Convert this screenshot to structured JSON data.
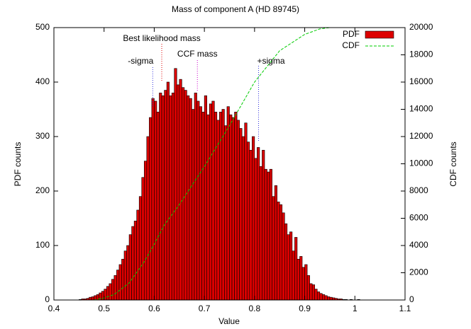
{
  "chart_data": {
    "type": "histogram",
    "title": "Mass of component A (HD 89745)",
    "x_label": "Value",
    "y_label": "PDF counts",
    "y2_label": "CDF counts",
    "bins": [
      0.44,
      0.445,
      0.45,
      0.455,
      0.46,
      0.465,
      0.47,
      0.475,
      0.48,
      0.485,
      0.49,
      0.495,
      0.5,
      0.505,
      0.51,
      0.515,
      0.52,
      0.525,
      0.53,
      0.535,
      0.54,
      0.545,
      0.55,
      0.555,
      0.56,
      0.565,
      0.57,
      0.575,
      0.58,
      0.585,
      0.59,
      0.595,
      0.6,
      0.605,
      0.61,
      0.615,
      0.62,
      0.625,
      0.63,
      0.635,
      0.64,
      0.645,
      0.65,
      0.655,
      0.66,
      0.665,
      0.67,
      0.675,
      0.68,
      0.685,
      0.69,
      0.695,
      0.7,
      0.705,
      0.71,
      0.715,
      0.72,
      0.725,
      0.73,
      0.735,
      0.74,
      0.745,
      0.75,
      0.755,
      0.76,
      0.765,
      0.77,
      0.775,
      0.78,
      0.785,
      0.79,
      0.795,
      0.8,
      0.805,
      0.81,
      0.815,
      0.82,
      0.825,
      0.83,
      0.835,
      0.84,
      0.845,
      0.85,
      0.855,
      0.86,
      0.865,
      0.87,
      0.875,
      0.88,
      0.885,
      0.89,
      0.895,
      0.9,
      0.905,
      0.91,
      0.915,
      0.92,
      0.925,
      0.93,
      0.935,
      0.94,
      0.945,
      0.95,
      0.955,
      0.96,
      0.965,
      0.97,
      0.975,
      0.98,
      0.985,
      0.99,
      0.995,
      1.0,
      1.005,
      1.01,
      1.015,
      1.02
    ],
    "series": [
      {
        "name": "PDF",
        "color": "#dd0000",
        "values": [
          0,
          0,
          1,
          2,
          2,
          3,
          5,
          6,
          8,
          10,
          13,
          16,
          20,
          25,
          30,
          38,
          45,
          55,
          65,
          75,
          90,
          100,
          120,
          135,
          145,
          165,
          190,
          225,
          255,
          300,
          335,
          370,
          365,
          345,
          380,
          375,
          385,
          400,
          375,
          380,
          425,
          395,
          405,
          390,
          385,
          375,
          370,
          350,
          380,
          365,
          355,
          345,
          375,
          340,
          360,
          365,
          345,
          330,
          345,
          350,
          320,
          355,
          340,
          335,
          345,
          330,
          315,
          300,
          325,
          290,
          275,
          300,
          260,
          280,
          245,
          275,
          240,
          235,
          240,
          190,
          210,
          180,
          175,
          160,
          140,
          120,
          125,
          90,
          115,
          75,
          80,
          60,
          65,
          45,
          30,
          28,
          20,
          15,
          12,
          10,
          8,
          6,
          5,
          4,
          3,
          2,
          2,
          1,
          1,
          0,
          1,
          0,
          0,
          1,
          0,
          0
        ]
      },
      {
        "name": "CDF",
        "color": "#00cc00",
        "axis": "y2",
        "x": [
          0.48,
          0.5,
          0.52,
          0.55,
          0.58,
          0.6,
          0.62,
          0.65,
          0.7,
          0.75,
          0.8,
          0.85,
          0.9,
          0.93,
          0.95,
          0.97,
          1.0
        ],
        "values": [
          0,
          150,
          400,
          1250,
          2800,
          4100,
          5500,
          7000,
          9800,
          12800,
          16000,
          18300,
          19500,
          19900,
          20000,
          20000,
          20000
        ]
      }
    ],
    "annotations": [
      {
        "text": "-sigma",
        "x": 0.597,
        "color": "#3333dd"
      },
      {
        "text": "Best likelihood mass",
        "x": 0.615,
        "color": "#dd0000"
      },
      {
        "text": "CCF mass",
        "x": 0.686,
        "color": "#cc00cc"
      },
      {
        "text": "+sigma",
        "x": 0.808,
        "color": "#3333dd"
      }
    ],
    "xlim": [
      0.4,
      1.1
    ],
    "xticks": [
      0.4,
      0.5,
      0.6,
      0.7,
      0.8,
      0.9,
      1,
      1.1
    ],
    "ylim": [
      0,
      500
    ],
    "yticks": [
      0,
      100,
      200,
      300,
      400,
      500
    ],
    "y2lim": [
      0,
      20000
    ],
    "y2ticks": [
      0,
      2000,
      4000,
      6000,
      8000,
      10000,
      12000,
      14000,
      16000,
      18000,
      20000
    ],
    "legend": "top-right"
  }
}
